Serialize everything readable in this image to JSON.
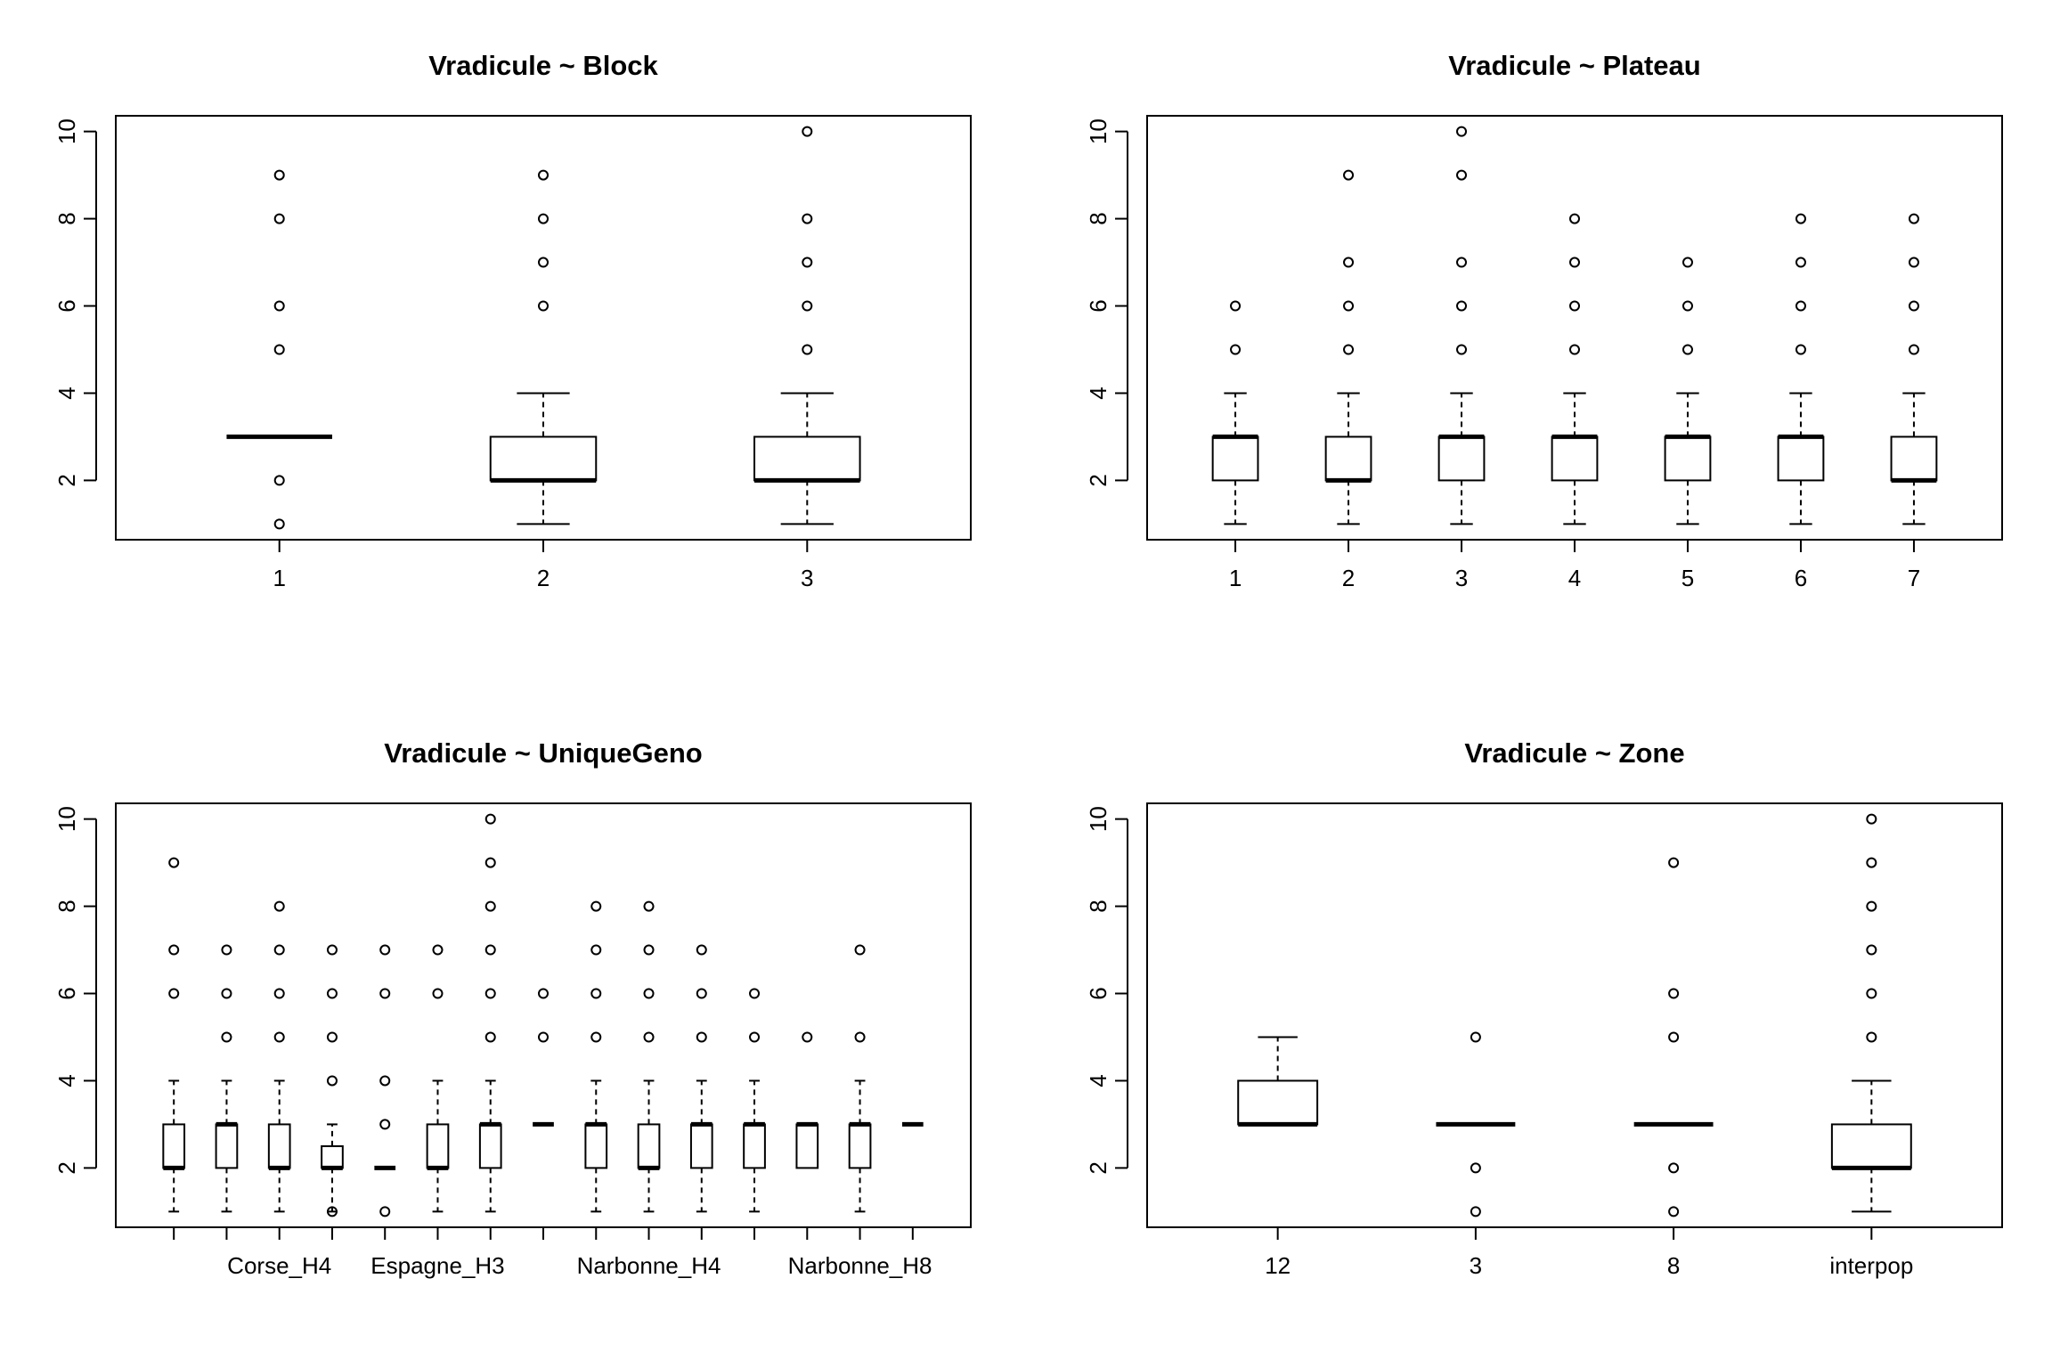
{
  "chart_data": [
    {
      "type": "boxplot",
      "title": "Vradicule ~ Block",
      "ylim": [
        1,
        10
      ],
      "yticks": [
        2,
        4,
        6,
        8,
        10
      ],
      "groups": [
        {
          "label": "1",
          "show_label": true,
          "stats": [
            3,
            3,
            3,
            3,
            3
          ],
          "outliers": [
            1,
            2,
            5,
            6,
            8,
            9
          ]
        },
        {
          "label": "2",
          "show_label": true,
          "stats": [
            1,
            2,
            2,
            3,
            4
          ],
          "outliers": [
            6,
            7,
            8,
            9
          ]
        },
        {
          "label": "3",
          "show_label": true,
          "stats": [
            1,
            2,
            2,
            3,
            4
          ],
          "outliers": [
            5,
            6,
            7,
            8,
            10
          ]
        }
      ]
    },
    {
      "type": "boxplot",
      "title": "Vradicule ~ Plateau",
      "ylim": [
        1,
        10
      ],
      "yticks": [
        2,
        4,
        6,
        8,
        10
      ],
      "groups": [
        {
          "label": "1",
          "show_label": true,
          "stats": [
            1,
            2,
            3,
            3,
            4
          ],
          "outliers": [
            5,
            6
          ]
        },
        {
          "label": "2",
          "show_label": true,
          "stats": [
            1,
            2,
            2,
            3,
            4
          ],
          "outliers": [
            5,
            6,
            7,
            9
          ]
        },
        {
          "label": "3",
          "show_label": true,
          "stats": [
            1,
            2,
            3,
            3,
            4
          ],
          "outliers": [
            5,
            6,
            7,
            9,
            10
          ]
        },
        {
          "label": "4",
          "show_label": true,
          "stats": [
            1,
            2,
            3,
            3,
            4
          ],
          "outliers": [
            5,
            6,
            7,
            8
          ]
        },
        {
          "label": "5",
          "show_label": true,
          "stats": [
            1,
            2,
            3,
            3,
            4
          ],
          "outliers": [
            5,
            6,
            7
          ]
        },
        {
          "label": "6",
          "show_label": true,
          "stats": [
            1,
            2,
            3,
            3,
            4
          ],
          "outliers": [
            5,
            6,
            7,
            8
          ]
        },
        {
          "label": "7",
          "show_label": true,
          "stats": [
            1,
            2,
            2,
            3,
            4
          ],
          "outliers": [
            5,
            6,
            7,
            8
          ]
        }
      ]
    },
    {
      "type": "boxplot",
      "title": "Vradicule ~ UniqueGeno",
      "ylim": [
        1,
        10
      ],
      "yticks": [
        2,
        4,
        6,
        8,
        10
      ],
      "groups": [
        {
          "label": "",
          "show_label": false,
          "stats": [
            1,
            2,
            2,
            3,
            4
          ],
          "outliers": [
            6,
            7,
            9
          ]
        },
        {
          "label": "",
          "show_label": false,
          "stats": [
            1,
            2,
            3,
            3,
            4
          ],
          "outliers": [
            5,
            6,
            7
          ]
        },
        {
          "label": "Corse_H4",
          "show_label": true,
          "stats": [
            1,
            2,
            2,
            3,
            4
          ],
          "outliers": [
            5,
            6,
            7,
            8
          ]
        },
        {
          "label": "",
          "show_label": false,
          "stats": [
            1,
            2,
            2,
            2.5,
            3
          ],
          "outliers": [
            1,
            4,
            5,
            6,
            7
          ]
        },
        {
          "label": "",
          "show_label": false,
          "stats": [
            2,
            2,
            2,
            2,
            2
          ],
          "outliers": [
            1,
            3,
            4,
            6,
            7
          ]
        },
        {
          "label": "Espagne_H3",
          "show_label": true,
          "stats": [
            1,
            2,
            2,
            3,
            4
          ],
          "outliers": [
            6,
            7
          ]
        },
        {
          "label": "",
          "show_label": false,
          "stats": [
            1,
            2,
            3,
            3,
            4
          ],
          "outliers": [
            5,
            6,
            7,
            8,
            9,
            10
          ]
        },
        {
          "label": "",
          "show_label": false,
          "stats": [
            3,
            3,
            3,
            3,
            3
          ],
          "outliers": [
            5,
            6
          ]
        },
        {
          "label": "",
          "show_label": false,
          "stats": [
            1,
            2,
            3,
            3,
            4
          ],
          "outliers": [
            5,
            6,
            7,
            8
          ]
        },
        {
          "label": "Narbonne_H4",
          "show_label": true,
          "stats": [
            1,
            2,
            2,
            3,
            4
          ],
          "outliers": [
            5,
            6,
            7,
            8
          ]
        },
        {
          "label": "",
          "show_label": false,
          "stats": [
            1,
            2,
            3,
            3,
            4
          ],
          "outliers": [
            5,
            6,
            7
          ]
        },
        {
          "label": "",
          "show_label": false,
          "stats": [
            1,
            2,
            3,
            3,
            4
          ],
          "outliers": [
            5,
            6
          ]
        },
        {
          "label": "",
          "show_label": false,
          "stats": [
            2,
            2,
            3,
            3,
            3
          ],
          "outliers": [
            5
          ]
        },
        {
          "label": "Narbonne_H8",
          "show_label": true,
          "stats": [
            1,
            2,
            3,
            3,
            4
          ],
          "outliers": [
            5,
            7
          ]
        },
        {
          "label": "",
          "show_label": false,
          "stats": [
            3,
            3,
            3,
            3,
            3
          ],
          "outliers": []
        }
      ]
    },
    {
      "type": "boxplot",
      "title": "Vradicule ~ Zone",
      "ylim": [
        1,
        10
      ],
      "yticks": [
        2,
        4,
        6,
        8,
        10
      ],
      "groups": [
        {
          "label": "12",
          "show_label": true,
          "stats": [
            3,
            3,
            3,
            4,
            5
          ],
          "outliers": []
        },
        {
          "label": "3",
          "show_label": true,
          "stats": [
            3,
            3,
            3,
            3,
            3
          ],
          "outliers": [
            1,
            2,
            5
          ]
        },
        {
          "label": "8",
          "show_label": true,
          "stats": [
            3,
            3,
            3,
            3,
            3
          ],
          "outliers": [
            1,
            2,
            5,
            6,
            9
          ]
        },
        {
          "label": "interpop",
          "show_label": true,
          "stats": [
            1,
            2,
            2,
            3,
            4
          ],
          "outliers": [
            5,
            6,
            7,
            8,
            9,
            10
          ]
        }
      ]
    }
  ]
}
